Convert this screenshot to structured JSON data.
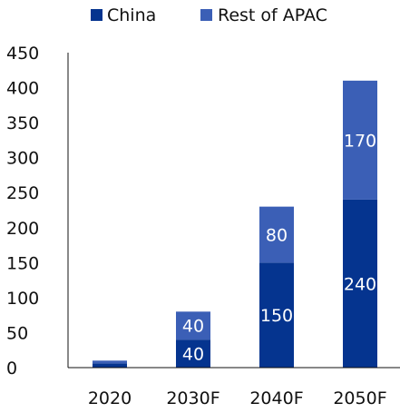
{
  "chart_data": {
    "type": "bar",
    "stacked": true,
    "categories": [
      "2020",
      "2030F",
      "2040F",
      "2050F"
    ],
    "series": [
      {
        "name": "China",
        "values": [
          6,
          40,
          150,
          240
        ],
        "labels": [
          "",
          "40",
          "150",
          "240"
        ],
        "color": "#05348f"
      },
      {
        "name": "Rest of APAC",
        "values": [
          4,
          40,
          80,
          170
        ],
        "labels": [
          "",
          "40",
          "80",
          "170"
        ],
        "color": "#3b5fb6"
      }
    ],
    "title": "",
    "xlabel": "",
    "ylabel": "",
    "ylim": [
      0,
      450
    ],
    "yticks": [
      0,
      50,
      100,
      150,
      200,
      250,
      300,
      350,
      400,
      450
    ],
    "grid": false,
    "legend": "top"
  }
}
